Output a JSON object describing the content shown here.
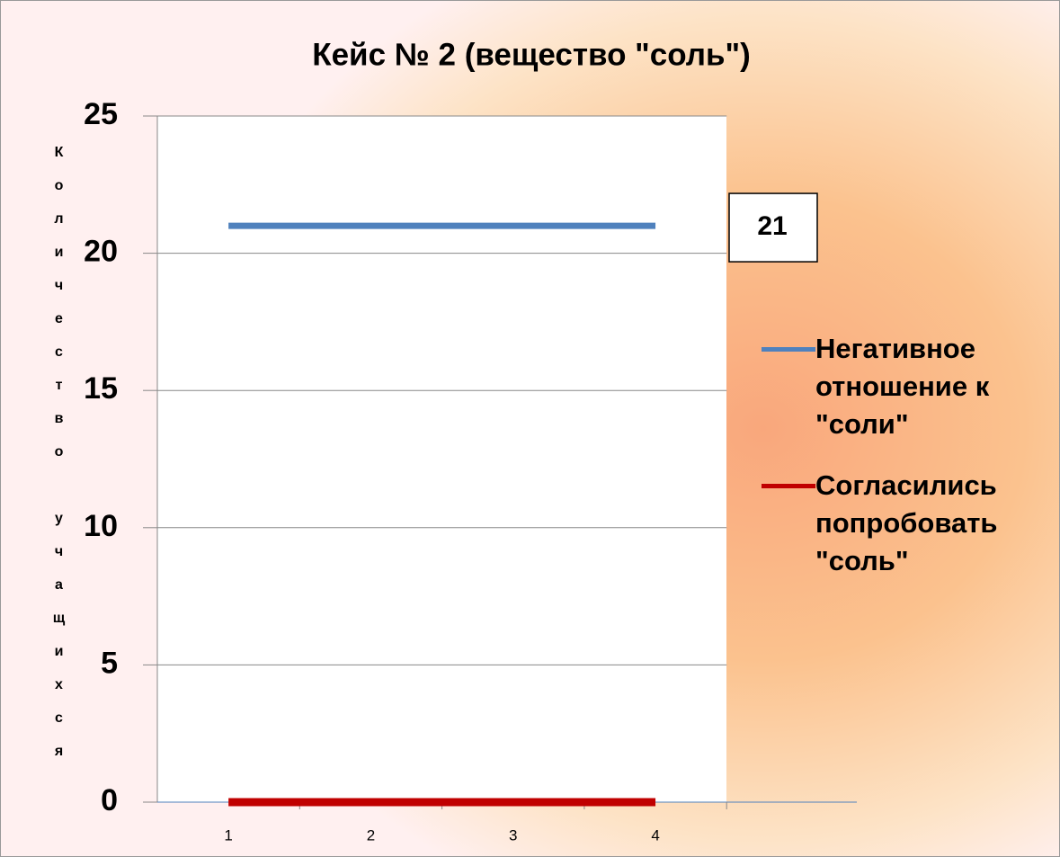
{
  "chart_data": {
    "type": "line",
    "title": "Кейс № 2 (вещество \"соль\")",
    "y_label": "Количество учащихся",
    "categories": [
      "1",
      "2",
      "3",
      "4"
    ],
    "series": [
      {
        "name": "Негативное отношение к \"соли\"",
        "color": "#4f81bd",
        "values": [
          21,
          21,
          21,
          21
        ]
      },
      {
        "name": "Согласились попробовать \"соль\"",
        "color": "#c00000",
        "values": [
          0,
          0,
          0,
          0
        ]
      }
    ],
    "ylim": [
      0,
      25
    ],
    "yticks": [
      0,
      5,
      10,
      15,
      20,
      25
    ],
    "grid": true,
    "legend": "right"
  }
}
